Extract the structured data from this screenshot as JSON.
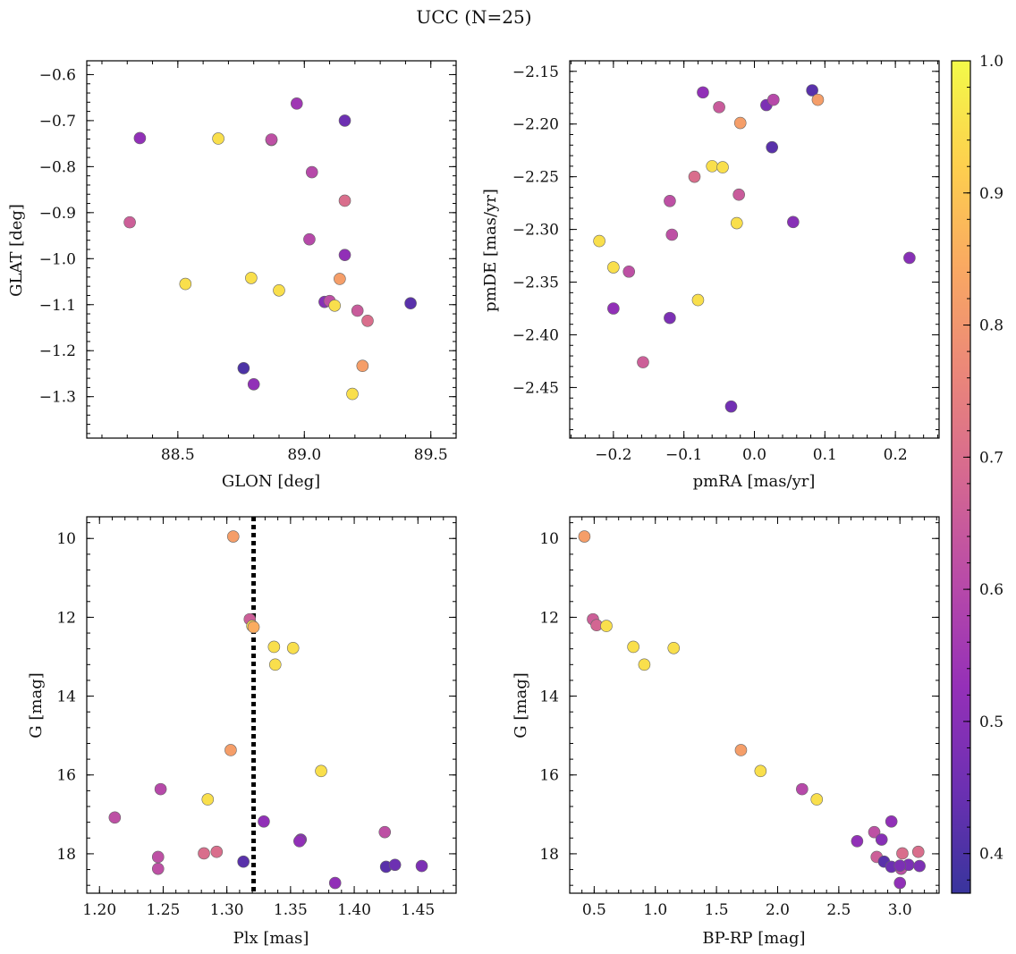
{
  "chart_data": {
    "title": "UCC (N=25)",
    "colorbar": {
      "range": [
        0.37,
        1.0
      ],
      "ticks": [
        0.4,
        0.5,
        0.6,
        0.7,
        0.8,
        0.9,
        1.0
      ],
      "tick_labels": [
        "0.4",
        "0.5",
        "0.6",
        "0.7",
        "0.8",
        "0.9",
        "1.0"
      ],
      "colormap": "plasma"
    },
    "panels": [
      {
        "type": "scatter",
        "xlabel": "GLON [deg]",
        "ylabel": "GLAT [deg]",
        "xlim": [
          88.14,
          89.6
        ],
        "ylim": [
          -1.39,
          -0.57
        ],
        "xticks": [
          88.5,
          89.0,
          89.5
        ],
        "xtick_labels": [
          "88.5",
          "89.0",
          "89.5"
        ],
        "yticks": [
          -0.6,
          -0.7,
          -0.8,
          -0.9,
          -1.0,
          -1.1,
          -1.2,
          -1.3
        ],
        "ytick_labels": [
          "−0.6",
          "−0.7",
          "−0.8",
          "−0.9",
          "−1.0",
          "−1.1",
          "−1.2",
          "−1.3"
        ],
        "x": [
          88.35,
          88.66,
          88.87,
          88.97,
          89.16,
          88.31,
          89.03,
          89.16,
          89.02,
          89.16,
          88.53,
          88.79,
          88.9,
          89.14,
          89.08,
          89.1,
          89.12,
          89.21,
          89.25,
          89.42,
          88.76,
          88.8,
          89.23,
          89.19,
          88.87
        ],
        "y": [
          -0.738,
          -0.739,
          -0.742,
          -0.663,
          -0.7,
          -0.921,
          -0.812,
          -0.874,
          -0.958,
          -0.992,
          -1.055,
          -1.042,
          -1.069,
          -1.044,
          -1.094,
          -1.092,
          -1.102,
          -1.113,
          -1.135,
          -1.097,
          -1.238,
          -1.273,
          -1.233,
          -1.294,
          -0.741
        ],
        "c": [
          0.52,
          0.95,
          0.63,
          0.55,
          0.45,
          0.66,
          0.6,
          0.7,
          0.6,
          0.52,
          0.95,
          0.95,
          0.95,
          0.82,
          0.5,
          0.62,
          0.95,
          0.65,
          0.7,
          0.42,
          0.4,
          0.52,
          0.82,
          0.95,
          0.62
        ]
      },
      {
        "type": "scatter",
        "xlabel": "pmRA [mas/yr]",
        "ylabel": "pmDE [mas/yr]",
        "xlim": [
          -0.262,
          0.262
        ],
        "ylim": [
          -2.498,
          -2.14
        ],
        "xticks": [
          -0.2,
          -0.1,
          0.0,
          0.1,
          0.2
        ],
        "xtick_labels": [
          "−0.2",
          "−0.1",
          "0.0",
          "0.1",
          "0.2"
        ],
        "yticks": [
          -2.15,
          -2.2,
          -2.25,
          -2.3,
          -2.35,
          -2.4,
          -2.45
        ],
        "ytick_labels": [
          "−2.15",
          "−2.20",
          "−2.25",
          "−2.30",
          "−2.35",
          "−2.40",
          "−2.45"
        ],
        "x": [
          -0.073,
          -0.05,
          -0.02,
          0.017,
          0.027,
          0.082,
          0.09,
          0.025,
          -0.06,
          -0.045,
          -0.085,
          -0.022,
          -0.12,
          -0.025,
          0.055,
          -0.117,
          -0.22,
          -0.2,
          -0.178,
          -0.08,
          -0.2,
          -0.12,
          -0.158,
          -0.033,
          0.22
        ],
        "y": [
          -2.17,
          -2.184,
          -2.199,
          -2.182,
          -2.177,
          -2.168,
          -2.177,
          -2.222,
          -2.24,
          -2.241,
          -2.25,
          -2.267,
          -2.273,
          -2.294,
          -2.293,
          -2.305,
          -2.311,
          -2.336,
          -2.34,
          -2.367,
          -2.375,
          -2.384,
          -2.426,
          -2.468,
          -2.327
        ],
        "c": [
          0.52,
          0.65,
          0.82,
          0.48,
          0.6,
          0.42,
          0.82,
          0.42,
          0.95,
          0.95,
          0.7,
          0.65,
          0.62,
          0.95,
          0.5,
          0.62,
          0.95,
          0.95,
          0.62,
          0.95,
          0.52,
          0.48,
          0.66,
          0.46,
          0.5
        ]
      },
      {
        "type": "scatter",
        "xlabel": "Plx [mas]",
        "ylabel": "G [mag]",
        "xlim": [
          1.19,
          1.48
        ],
        "ylim": [
          19.0,
          9.45
        ],
        "xticks": [
          1.2,
          1.25,
          1.3,
          1.35,
          1.4,
          1.45
        ],
        "xtick_labels": [
          "1.20",
          "1.25",
          "1.30",
          "1.35",
          "1.40",
          "1.45"
        ],
        "yticks": [
          10,
          12,
          14,
          16,
          18
        ],
        "ytick_labels": [
          "10",
          "12",
          "14",
          "16",
          "18"
        ],
        "vline": 1.321,
        "x": [
          1.305,
          1.318,
          1.32,
          1.337,
          1.352,
          1.338,
          1.303,
          1.374,
          1.285,
          1.248,
          1.212,
          1.329,
          1.424,
          1.246,
          1.246,
          1.282,
          1.292,
          1.358,
          1.357,
          1.313,
          1.385,
          1.425,
          1.432,
          1.453,
          1.321
        ],
        "y": [
          9.95,
          12.05,
          12.22,
          12.75,
          12.78,
          13.2,
          15.37,
          15.9,
          16.62,
          16.36,
          17.08,
          17.18,
          17.45,
          18.08,
          18.38,
          17.99,
          17.95,
          17.64,
          17.68,
          18.2,
          18.74,
          18.33,
          18.28,
          18.31,
          12.25
        ],
        "c": [
          0.82,
          0.66,
          0.95,
          0.95,
          0.95,
          0.95,
          0.82,
          0.95,
          0.95,
          0.6,
          0.62,
          0.52,
          0.62,
          0.62,
          0.62,
          0.7,
          0.7,
          0.5,
          0.52,
          0.42,
          0.52,
          0.42,
          0.45,
          0.48,
          0.85
        ]
      },
      {
        "type": "scatter",
        "xlabel": "BP-RP [mag]",
        "ylabel": "G [mag]",
        "xlim": [
          0.3,
          3.32
        ],
        "ylim": [
          19.0,
          9.45
        ],
        "xticks": [
          0.5,
          1.0,
          1.5,
          2.0,
          2.5,
          3.0
        ],
        "xtick_labels": [
          "0.5",
          "1.0",
          "1.5",
          "2.0",
          "2.5",
          "3.0"
        ],
        "yticks": [
          10,
          12,
          14,
          16,
          18
        ],
        "ytick_labels": [
          "10",
          "12",
          "14",
          "16",
          "18"
        ],
        "x": [
          0.42,
          0.49,
          0.52,
          0.6,
          0.82,
          0.91,
          1.15,
          1.7,
          1.86,
          2.2,
          2.32,
          2.65,
          2.79,
          2.81,
          2.85,
          2.87,
          2.93,
          2.93,
          3.0,
          3.01,
          3.02,
          3.07,
          3.15,
          3.16,
          3.0
        ],
        "y": [
          9.95,
          12.05,
          12.2,
          12.22,
          12.75,
          13.2,
          12.78,
          15.37,
          15.9,
          16.36,
          16.62,
          17.68,
          17.45,
          18.08,
          17.64,
          18.2,
          18.33,
          17.18,
          18.74,
          18.38,
          17.99,
          18.28,
          17.95,
          18.31,
          18.3
        ],
        "c": [
          0.82,
          0.66,
          0.68,
          0.95,
          0.95,
          0.95,
          0.95,
          0.82,
          0.95,
          0.6,
          0.95,
          0.52,
          0.62,
          0.66,
          0.5,
          0.42,
          0.45,
          0.52,
          0.52,
          0.62,
          0.7,
          0.48,
          0.7,
          0.48,
          0.48
        ]
      }
    ]
  }
}
